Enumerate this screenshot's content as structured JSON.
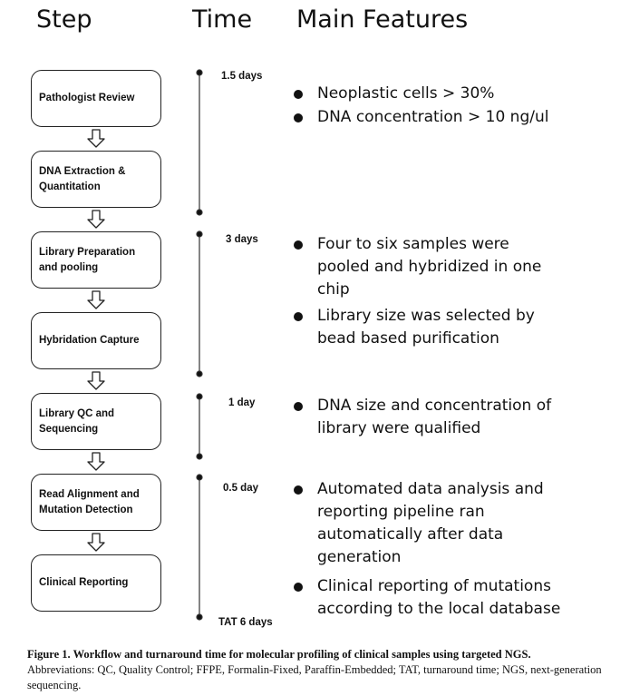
{
  "headers": {
    "step": "Step",
    "time": "Time",
    "features": "Main Features"
  },
  "steps": [
    "Pathologist Review",
    "DNA Extraction & Quantitation",
    "Library Preparation and pooling",
    "Hybridation Capture",
    "Library QC and Sequencing",
    "Read Alignment and Mutation Detection",
    "Clinical Reporting"
  ],
  "time_labels": [
    "1.5 days",
    "3 days",
    "1 day",
    "0.5 day",
    "TAT  6 days"
  ],
  "features": [
    "Neoplastic cells > 30%",
    "DNA concentration > 10 ng/ul",
    "Four to six samples were pooled and hybridized in one chip",
    "Library size was selected by bead based purification",
    "DNA size and concentration of library were qualified",
    "Automated data analysis and reporting pipeline ran automatically after data generation",
    "Clinical reporting of mutations according to the local database"
  ],
  "caption": {
    "title": "Figure 1.  Workflow and turnaround time for molecular profiling of clinical samples using targeted NGS.",
    "body": "Abbreviations: QC, Quality Control; FFPE, Formalin-Fixed, Paraffin-Embedded; TAT, turnaround time; NGS, next-generation sequencing."
  }
}
